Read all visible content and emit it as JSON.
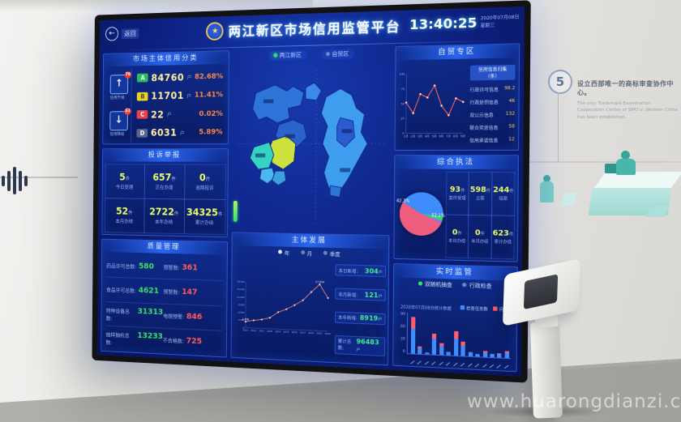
{
  "watermark": "www.huarongdianzi.com",
  "wall": {
    "step_number": "5",
    "heading_zh": "设立西部唯一的商标审查协作中心。",
    "body_en": "The only Trademark Examination Cooperation Center of SIPO in Western China has been established."
  },
  "colors": {
    "grade_a": "#21c25e",
    "grade_b": "#e9cf2a",
    "grade_c": "#e8414b",
    "grade_d": "#57678c",
    "accent_blue": "#3f8cff",
    "alert_red": "#ff5d6e",
    "good_green": "#35e06a",
    "warn_orange": "#ff8748",
    "dash_bg": "#0c1f7e"
  },
  "screen": {
    "back_button": {
      "label": "返回"
    },
    "header": {
      "title": "两江新区市场信用监管平台"
    },
    "clock": {
      "time": "13:40:25",
      "date": "2020年07月08日",
      "week": "星期三"
    },
    "region_tabs": [
      {
        "label": "两江新区",
        "active": true
      },
      {
        "label": "自贸区",
        "active": false
      }
    ],
    "credit_panel": {
      "title": "市场主体信用分类",
      "up": {
        "label": "信用升级",
        "badge": "76",
        "arrow": "↑"
      },
      "down": {
        "label": "信用降级",
        "badge": "53",
        "arrow": "↓"
      },
      "rows": [
        {
          "grade": "A",
          "count": "84760",
          "unit": "户",
          "pct": "82.68%"
        },
        {
          "grade": "B",
          "count": "11701",
          "unit": "户",
          "pct": "11.41%"
        },
        {
          "grade": "C",
          "count": "22",
          "unit": "户",
          "pct": "0.02%"
        },
        {
          "grade": "D",
          "count": "6031",
          "unit": "户",
          "pct": "5.89%"
        }
      ]
    },
    "complaint_panel": {
      "title": "投诉举报",
      "cells": [
        {
          "value": "5",
          "unit": "件",
          "label": "今日受理"
        },
        {
          "value": "657",
          "unit": "件",
          "label": "正在办理"
        },
        {
          "value": "0",
          "unit": "件",
          "label": "逾期投诉"
        },
        {
          "value": "52",
          "unit": "件",
          "label": "本月办结"
        },
        {
          "value": "2722",
          "unit": "件",
          "label": "本年办结"
        },
        {
          "value": "34325",
          "unit": "件",
          "label": "累计办结"
        }
      ]
    },
    "quality_panel": {
      "title": "质量管理",
      "rows": [
        {
          "left_label": "药品许可总数:",
          "left_value": "580",
          "right_label": "预警数:",
          "right_value": "361"
        },
        {
          "left_label": "食品许可总数:",
          "left_value": "4621",
          "right_label": "预警数:",
          "right_value": "147"
        },
        {
          "left_label": "特种设备总数:",
          "left_value": "31313",
          "right_label": "电梯预警:",
          "right_value": "846"
        },
        {
          "left_label": "抽样抽检总数:",
          "left_value": "13233",
          "right_label": "不合格数:",
          "right_value": "725"
        }
      ]
    },
    "development_panel": {
      "title": "主体发展",
      "modes": [
        "年",
        "月",
        "季度"
      ],
      "stats": [
        {
          "label": "本日新增:",
          "value": "304",
          "unit": "户"
        },
        {
          "label": "本月新增:",
          "value": "121",
          "unit": "户"
        },
        {
          "label": "本年新增:",
          "value": "8919",
          "unit": "户"
        },
        {
          "label": "累计总数:",
          "value": "96483",
          "unit": "户"
        }
      ]
    },
    "ftz_panel": {
      "title": "自贸专区",
      "list_header": "信用信息归集（条）",
      "rows": [
        {
          "label": "行政许可信息",
          "value": "98.2"
        },
        {
          "label": "行政处罚信息",
          "value": "46"
        },
        {
          "label": "双公示信息",
          "value": "132"
        },
        {
          "label": "联合奖惩信息",
          "value": "58"
        },
        {
          "label": "信用承诺信息",
          "value": "12"
        }
      ]
    },
    "enforcement_panel": {
      "title": "综合执法",
      "cells": [
        {
          "value": "93",
          "unit": "件",
          "label": "案件受理"
        },
        {
          "value": "598",
          "unit": "件",
          "label": "立案"
        },
        {
          "value": "244",
          "unit": "件",
          "label": "结案"
        },
        {
          "value": "0",
          "unit": "件",
          "label": "本日办结"
        },
        {
          "value": "0",
          "unit": "件",
          "label": "本月办结"
        },
        {
          "value": "623",
          "unit": "件",
          "label": "累计办结"
        }
      ]
    },
    "supervision_panel": {
      "title": "实时监管",
      "caption": "2020年07月08日统计数据",
      "options": [
        {
          "label": "双随机抽查",
          "active": true
        },
        {
          "label": "行政检查",
          "active": false
        }
      ],
      "legend": [
        {
          "label": "检查任务数",
          "color": "#3f8cff"
        },
        {
          "label": "问题数",
          "color": "#ff5d6e"
        }
      ]
    }
  },
  "chart_data": [
    {
      "type": "line",
      "title": "主体发展",
      "x": [
        "2010",
        "2011",
        "2012",
        "2013",
        "2014",
        "2015",
        "2016",
        "2017",
        "2018",
        "2019",
        "2020"
      ],
      "yticks": [
        "0",
        "3,000",
        "6,000",
        "9,000",
        "12,000",
        "15,000",
        "18,000"
      ],
      "ylim": [
        0,
        18000
      ],
      "series": [
        {
          "name": "市场主体数量",
          "values": [
            2408,
            3050,
            3500,
            4300,
            6600,
            7900,
            9600,
            11600,
            14900,
            17934,
            12800
          ]
        }
      ],
      "point_labels": {
        "0": "2,408",
        "9": "17,934"
      },
      "color": "#ff8f7a",
      "legend_position": "top",
      "grid": false
    },
    {
      "type": "line",
      "title": "自贸专区",
      "x": [
        "1月",
        "2月",
        "3月",
        "4月",
        "5月",
        "6月",
        "7月",
        "8月",
        "9月"
      ],
      "yticks": [
        "0",
        "25",
        "50",
        "75",
        "100"
      ],
      "ylim": [
        0,
        100
      ],
      "series": [
        {
          "name": "信用指数",
          "values": [
            52,
            34,
            66,
            60,
            80,
            46,
            30,
            58,
            52
          ]
        }
      ],
      "color": "#ff6a5e",
      "grid": false
    },
    {
      "type": "pie",
      "title": "综合执法案件构成",
      "slices": [
        {
          "label": "52.1%",
          "value": 52.1,
          "color": "#ef5d7e"
        },
        {
          "label": "42.3%",
          "value": 42.3,
          "color": "#3f8cff"
        },
        {
          "label": "",
          "value": 3.6,
          "color": "#35d46a"
        },
        {
          "label": "",
          "value": 2.0,
          "color": "#9a6cf5"
        }
      ]
    },
    {
      "type": "bar",
      "title": "实时监管（双随机抽查）",
      "stacked": true,
      "categories": [
        "",
        "",
        "",
        "",
        "",
        "",
        "",
        "",
        "",
        "",
        "",
        "",
        "",
        ""
      ],
      "yticks": [
        "0",
        "30",
        "60",
        "90"
      ],
      "ylim": [
        0,
        100
      ],
      "series": [
        {
          "name": "检查任务数",
          "color": "#3f8cff",
          "values": [
            62,
            15,
            5,
            38,
            22,
            8,
            40,
            25,
            10,
            7,
            11,
            8,
            9,
            13
          ]
        },
        {
          "name": "问题数",
          "color": "#ff5d6e",
          "values": [
            28,
            3,
            0,
            14,
            7,
            0,
            20,
            9,
            0,
            0,
            3,
            0,
            2,
            4
          ]
        }
      ]
    }
  ]
}
